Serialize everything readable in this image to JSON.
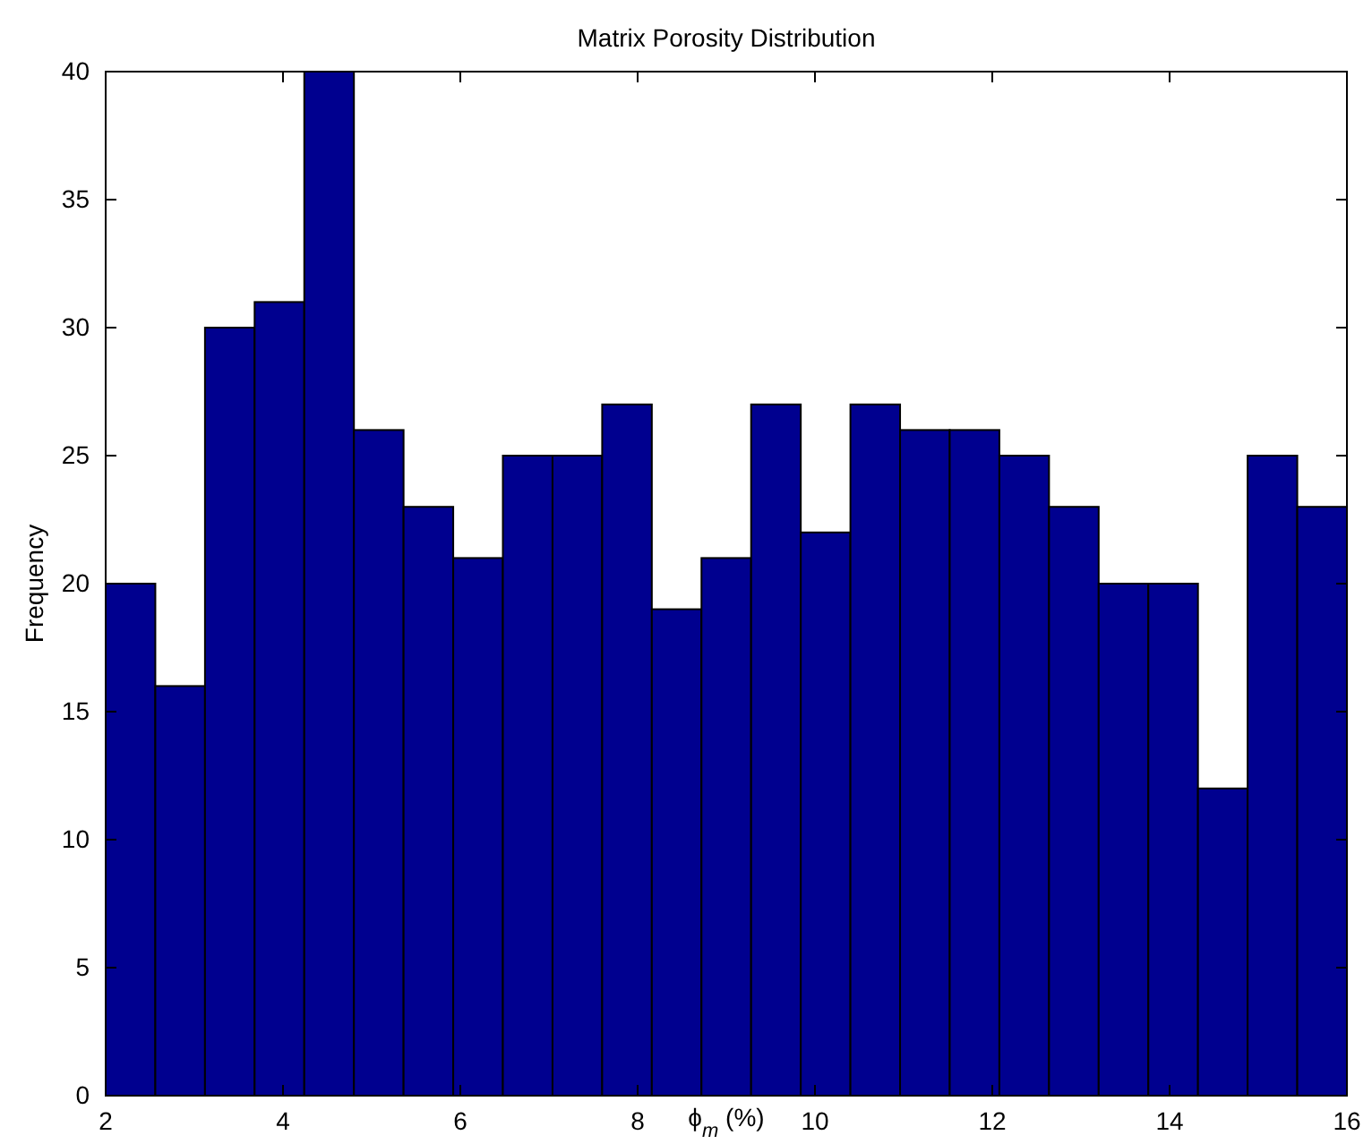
{
  "chart_data": {
    "type": "histogram",
    "title": "Matrix Porosity Distribution",
    "xlabel": "ϕ$_{m}$ (%)",
    "ylabel": "Frequency",
    "bins": [
      2,
      2.56,
      3.12,
      3.68,
      4.24,
      4.8,
      5.36,
      5.92,
      6.48,
      7.04,
      7.6,
      8.16,
      8.72,
      9.28,
      9.84,
      10.4,
      10.96,
      11.52,
      12.08,
      12.64,
      13.2,
      13.76,
      14.32,
      14.88,
      15.44,
      16
    ],
    "values": [
      20,
      16,
      30,
      31,
      40,
      26,
      23,
      21,
      25,
      25,
      27,
      19,
      21,
      27,
      22,
      27,
      26,
      26,
      25,
      23,
      20,
      20,
      12,
      25,
      23
    ],
    "color": "#00008f",
    "xlim": [
      2,
      16
    ],
    "xticks": [
      2,
      4,
      6,
      8,
      10,
      12,
      14,
      16
    ],
    "ylim": [
      0,
      40
    ],
    "yticks": [
      0,
      5,
      10,
      15,
      20,
      25,
      30,
      35,
      40
    ]
  }
}
